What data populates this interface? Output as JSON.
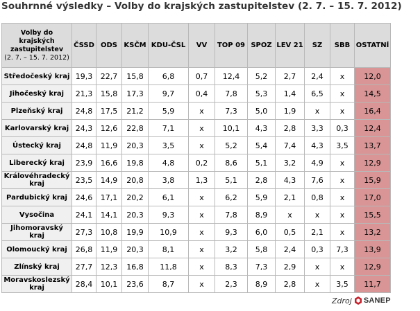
{
  "title": "Souhrnné výsledky – Volby do krajských zastupitelstev (2. 7. – 15. 7. 2012)",
  "table": {
    "corner_label": "Volby do krajských zastupitelstev",
    "corner_dates": "(2. 7. – 15. 7. 2012)",
    "columns": [
      "ČSSD",
      "ODS",
      "KSČM",
      "KDU-ČSL",
      "VV",
      "TOP 09",
      "SPOZ",
      "LEV 21",
      "SZ",
      "SBB",
      "OSTATNÍ"
    ],
    "rows": [
      {
        "region": "Středočeský kraj",
        "values": [
          "19,3",
          "22,7",
          "15,8",
          "6,8",
          "0,7",
          "12,4",
          "5,2",
          "2,7",
          "2,4",
          "x",
          "12,0"
        ]
      },
      {
        "region": "Jihočeský kraj",
        "values": [
          "21,3",
          "15,8",
          "17,3",
          "9,7",
          "0,4",
          "7,8",
          "5,3",
          "1,4",
          "6,5",
          "x",
          "14,5"
        ]
      },
      {
        "region": "Plzeňský kraj",
        "values": [
          "24,8",
          "17,5",
          "21,2",
          "5,9",
          "x",
          "7,3",
          "5,0",
          "1,9",
          "x",
          "x",
          "16,4"
        ]
      },
      {
        "region": "Karlovarský kraj",
        "values": [
          "24,3",
          "12,6",
          "22,8",
          "7,1",
          "x",
          "10,1",
          "4,3",
          "2,8",
          "3,3",
          "0,3",
          "12,4"
        ]
      },
      {
        "region": "Ústecký kraj",
        "values": [
          "24,8",
          "11,9",
          "20,3",
          "3,5",
          "x",
          "5,2",
          "5,4",
          "7,4",
          "4,3",
          "3,5",
          "13,7"
        ]
      },
      {
        "region": "Liberecký kraj",
        "values": [
          "23,9",
          "16,6",
          "19,8",
          "4,8",
          "0,2",
          "8,6",
          "5,1",
          "3,2",
          "4,9",
          "x",
          "12,9"
        ]
      },
      {
        "region": "Královéhradecký kraj",
        "values": [
          "23,5",
          "14,9",
          "20,8",
          "3,8",
          "1,3",
          "5,1",
          "2,8",
          "4,3",
          "7,6",
          "x",
          "15,9"
        ]
      },
      {
        "region": "Pardubický kraj",
        "values": [
          "24,6",
          "17,1",
          "20,2",
          "6,1",
          "x",
          "6,2",
          "5,9",
          "2,1",
          "0,8",
          "x",
          "17,0"
        ]
      },
      {
        "region": "Vysočina",
        "values": [
          "24,1",
          "14,1",
          "20,3",
          "9,3",
          "x",
          "7,8",
          "8,9",
          "x",
          "x",
          "x",
          "15,5"
        ]
      },
      {
        "region": "Jihomoravský kraj",
        "values": [
          "27,3",
          "10,8",
          "19,9",
          "10,9",
          "x",
          "9,3",
          "6,0",
          "0,5",
          "2,1",
          "x",
          "13,2"
        ]
      },
      {
        "region": "Olomoucký kraj",
        "values": [
          "26,8",
          "11,9",
          "20,3",
          "8,1",
          "x",
          "3,2",
          "5,8",
          "2,4",
          "0,3",
          "7,3",
          "13,9"
        ]
      },
      {
        "region": "Zlínský kraj",
        "values": [
          "27,7",
          "12,3",
          "16,8",
          "11,8",
          "x",
          "8,3",
          "7,3",
          "2,9",
          "x",
          "x",
          "12,9"
        ]
      },
      {
        "region": "Moravskoslezský kraj",
        "values": [
          "28,4",
          "10,1",
          "23,6",
          "8,7",
          "x",
          "2,3",
          "8,9",
          "2,8",
          "x",
          "3,5",
          "11,7"
        ]
      }
    ]
  },
  "source": {
    "label": "Zdroj",
    "logo_text": "SANEP",
    "logo_icon": "sanep-logo-icon"
  },
  "colors": {
    "highlight": "#d99595",
    "header_bg": "#dcdcdc",
    "row_header_bg": "#f0f0f0"
  }
}
